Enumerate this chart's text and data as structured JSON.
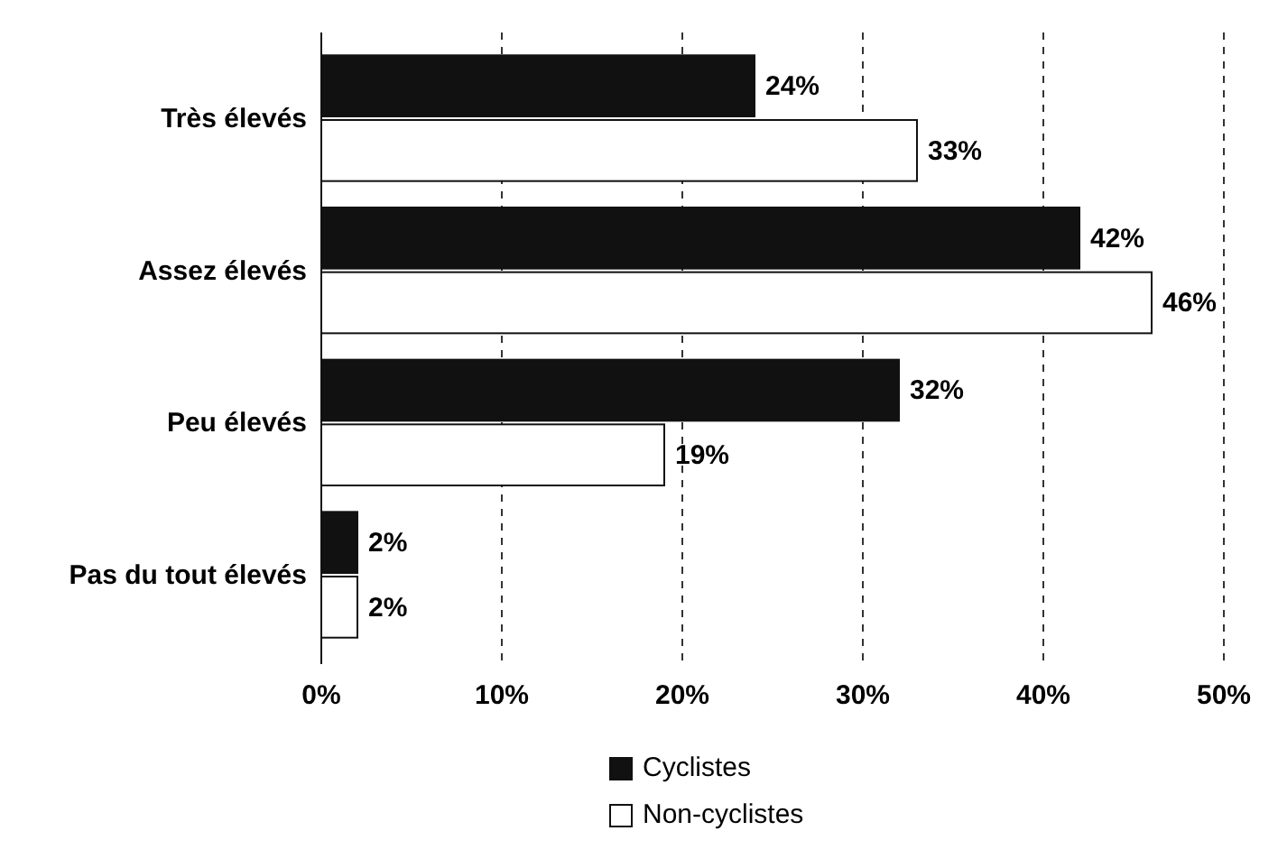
{
  "chart_data": {
    "type": "bar",
    "orientation": "horizontal",
    "categories": [
      "Très élevés",
      "Assez élevés",
      "Peu élevés",
      "Pas du tout élevés"
    ],
    "series": [
      {
        "name": "Cyclistes",
        "color": "#111111",
        "values": [
          24,
          42,
          32,
          2
        ],
        "value_labels": [
          "24%",
          "42%",
          "32%",
          "2%"
        ]
      },
      {
        "name": "Non-cyclistes",
        "color": "#ffffff",
        "values": [
          33,
          46,
          19,
          2
        ],
        "value_labels": [
          "33%",
          "46%",
          "19%",
          "2%"
        ]
      }
    ],
    "xlim": [
      0,
      50
    ],
    "xticks": [
      {
        "value": 0,
        "label": "0%"
      },
      {
        "value": 10,
        "label": "10%"
      },
      {
        "value": 20,
        "label": "20%"
      },
      {
        "value": 30,
        "label": "30%"
      },
      {
        "value": 40,
        "label": "40%"
      },
      {
        "value": 50,
        "label": "50%"
      }
    ],
    "grid": "x",
    "legend": "bottom"
  }
}
